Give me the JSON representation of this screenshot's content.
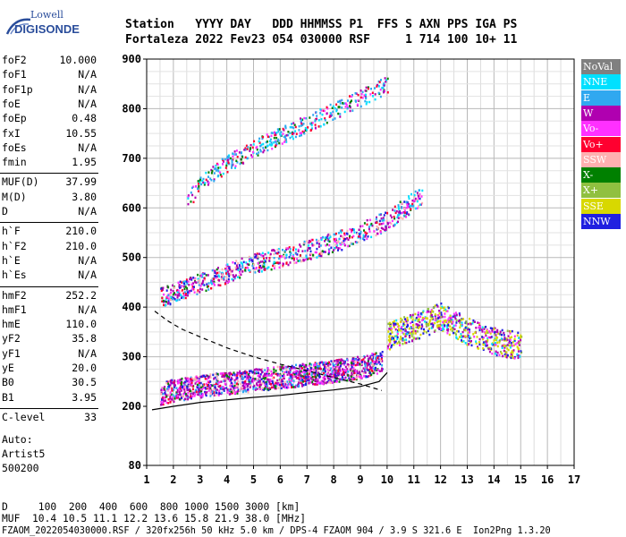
{
  "logo": {
    "line1": "Lowell",
    "line2": "DIGISONDE"
  },
  "header": {
    "row1": "Station   YYYY DAY   DDD HHMMSS P1  FFS S AXN PPS IGA PS",
    "row2": "Fortaleza 2022 Fev23 054 030000 RSF     1 714 100 10+ 11"
  },
  "params": [
    {
      "name": "foF2",
      "value": "10.000"
    },
    {
      "name": "foF1",
      "value": "N/A"
    },
    {
      "name": "foF1p",
      "value": "N/A"
    },
    {
      "name": "foE",
      "value": "N/A"
    },
    {
      "name": "foEp",
      "value": "0.48"
    },
    {
      "name": "fxI",
      "value": "10.55"
    },
    {
      "name": "foEs",
      "value": "N/A"
    },
    {
      "name": "fmin",
      "value": "1.95"
    },
    {
      "name": "MUF(D)",
      "value": "37.99"
    },
    {
      "name": "M(D)",
      "value": "3.80"
    },
    {
      "name": "D",
      "value": "N/A"
    },
    {
      "name": "h`F",
      "value": "210.0"
    },
    {
      "name": "h`F2",
      "value": "210.0"
    },
    {
      "name": "h`E",
      "value": "N/A"
    },
    {
      "name": "h`Es",
      "value": "N/A"
    },
    {
      "name": "hmF2",
      "value": "252.2"
    },
    {
      "name": "hmF1",
      "value": "N/A"
    },
    {
      "name": "hmE",
      "value": "110.0"
    },
    {
      "name": "yF2",
      "value": "35.8"
    },
    {
      "name": "yF1",
      "value": "N/A"
    },
    {
      "name": "yE",
      "value": "20.0"
    },
    {
      "name": "B0",
      "value": "30.5"
    },
    {
      "name": "B1",
      "value": "3.95"
    },
    {
      "name": "C-level",
      "value": "33"
    }
  ],
  "auto": {
    "label": "Auto:",
    "artist": "Artist5",
    "code": "500200"
  },
  "legend": [
    {
      "label": "NoVal",
      "color": "#808080"
    },
    {
      "label": "NNE",
      "color": "#00e0ff"
    },
    {
      "label": "E",
      "color": "#30a8f0"
    },
    {
      "label": "W",
      "color": "#b000b0"
    },
    {
      "label": "Vo-",
      "color": "#ff30ff"
    },
    {
      "label": "Vo+",
      "color": "#ff0030"
    },
    {
      "label": "SSW",
      "color": "#ffb0b0"
    },
    {
      "label": "X-",
      "color": "#008000"
    },
    {
      "label": "X+",
      "color": "#90c040"
    },
    {
      "label": "SSE",
      "color": "#d8d800"
    },
    {
      "label": "NNW",
      "color": "#2020e0"
    }
  ],
  "footer": {
    "dist": "D     100  200  400  600  800 1000 1500 3000 [km]",
    "muf": "MUF  10.4 10.5 11.1 12.2 13.6 15.8 21.9 38.0 [MHz]",
    "file": "FZAOM_2022054030000.RSF / 320fx256h 50 kHz 5.0 km / DPS-4 FZAOM 904 / 3.9 S 321.6 E  Ion2Png 1.3.20"
  },
  "chart_data": {
    "type": "scatter",
    "x_ticks": [
      1,
      2,
      3,
      4,
      5,
      6,
      7,
      8,
      9,
      10,
      11,
      12,
      13,
      14,
      15,
      16,
      17
    ],
    "y_ticks": [
      80,
      200,
      300,
      400,
      500,
      600,
      700,
      800,
      900
    ],
    "xlim": [
      1,
      17
    ],
    "y_scale": "height axis with 80 km at base, 200-900 km linear",
    "grid": true,
    "traces": [
      {
        "name": "F-layer O-trace",
        "x": [
          1.5,
          2,
          3,
          4,
          5,
          6,
          7,
          8,
          9,
          9.8
        ],
        "y": [
          225,
          232,
          240,
          246,
          252,
          258,
          264,
          270,
          278,
          290
        ]
      },
      {
        "name": "F-layer second hop",
        "x": [
          1.5,
          2,
          3,
          4,
          5,
          6,
          7,
          8,
          9,
          10,
          10.5,
          11.3
        ],
        "y": [
          420,
          428,
          448,
          468,
          488,
          500,
          515,
          530,
          550,
          575,
          595,
          625
        ]
      },
      {
        "name": "F-layer third hop",
        "x": [
          2.5,
          3,
          4,
          5,
          6,
          7,
          8,
          9,
          10
        ],
        "y": [
          610,
          650,
          690,
          720,
          745,
          770,
          795,
          820,
          850
        ]
      },
      {
        "name": "spread F blob",
        "x": [
          10,
          11,
          12,
          13,
          14,
          15
        ],
        "y": [
          340,
          360,
          380,
          350,
          330,
          320
        ]
      }
    ],
    "profile_solid": {
      "x": [
        1.2,
        2,
        3,
        4,
        5,
        6,
        7,
        8,
        9,
        9.7,
        10
      ],
      "y": [
        193,
        200,
        208,
        213,
        218,
        222,
        228,
        233,
        240,
        250,
        268
      ]
    },
    "profile_dashed": {
      "x": [
        1.3,
        1.8,
        2.3,
        3,
        4,
        5,
        6,
        7,
        8,
        9,
        9.8
      ],
      "y": [
        392,
        372,
        356,
        340,
        318,
        300,
        285,
        272,
        258,
        245,
        232
      ]
    }
  }
}
